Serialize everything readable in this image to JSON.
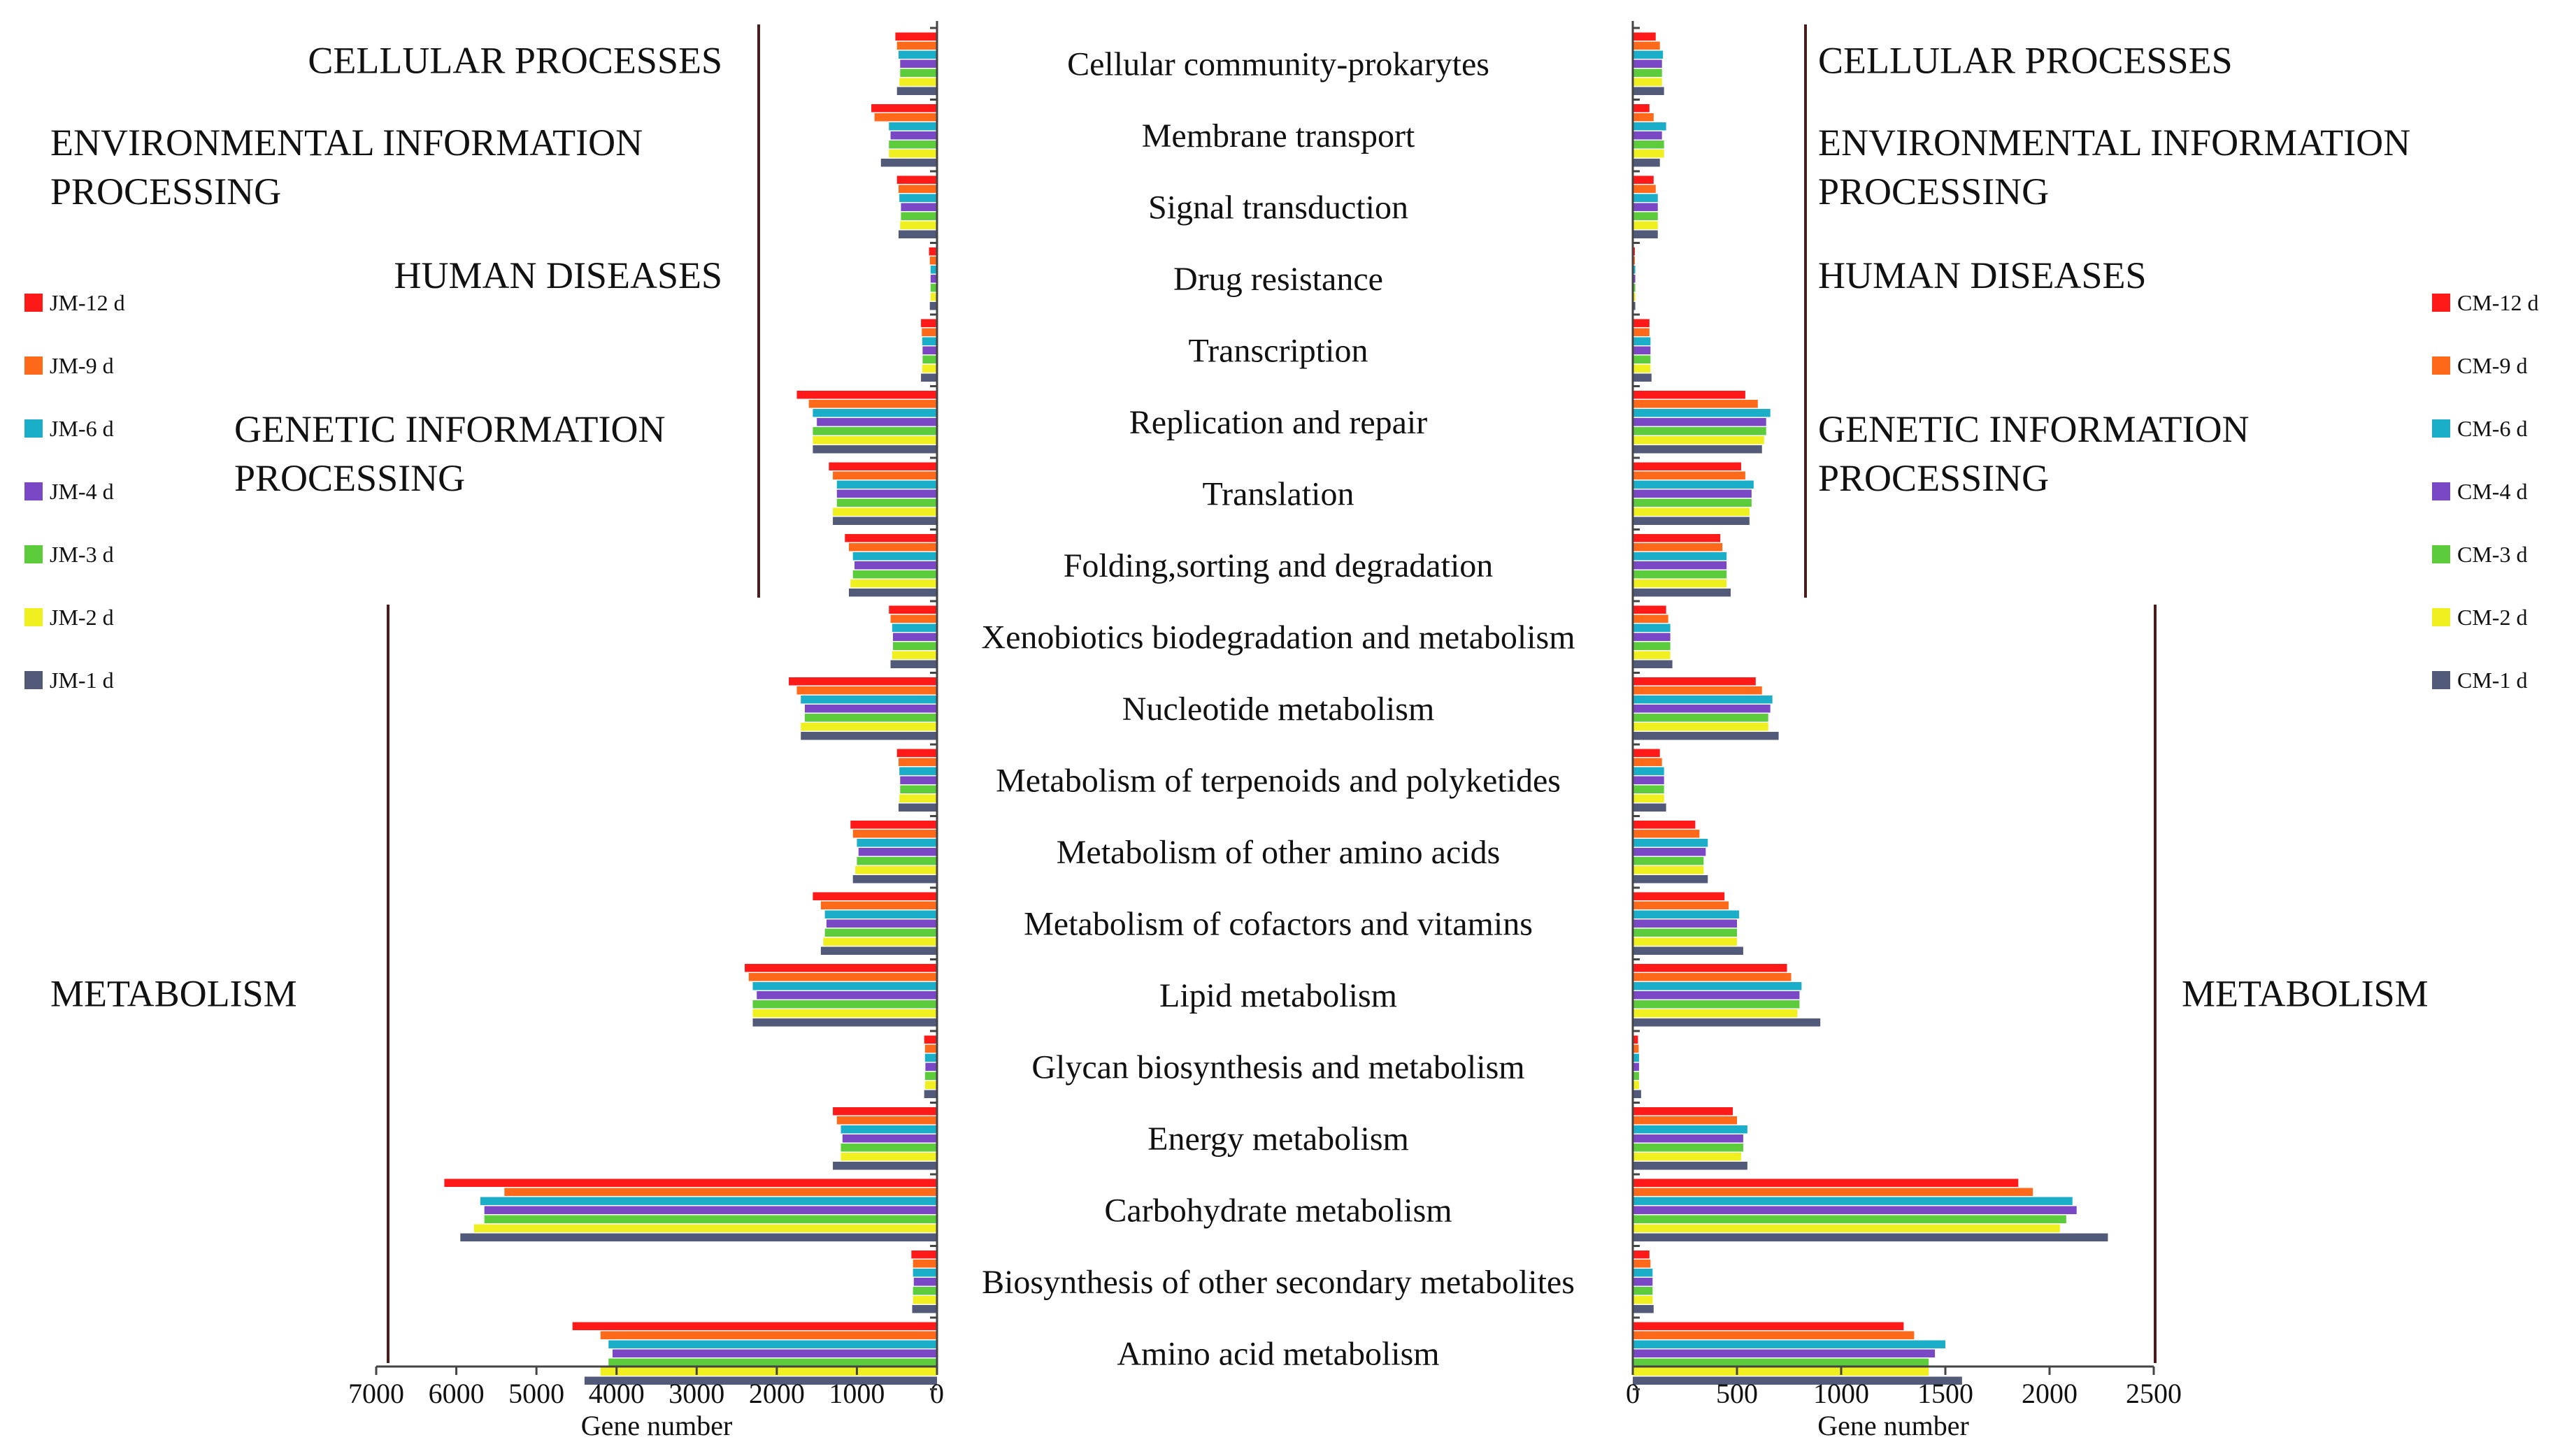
{
  "chart_data": {
    "type": "bar",
    "orientation": "horizontal",
    "categories": [
      "Cellular community-prokarytes",
      "Membrane transport",
      "Signal transduction",
      "Drug resistance",
      "Transcription",
      "Replication and repair",
      "Translation",
      "Folding,sorting and degradation",
      "Xenobiotics biodegradation and metabolism",
      "Nucleotide metabolism",
      "Metabolism of terpenoids and polyketides",
      "Metabolism of other amino acids",
      "Metabolism of cofactors and vitamins",
      "Lipid metabolism",
      "Glycan biosynthesis and metabolism",
      "Energy metabolism",
      "Carbohydrate metabolism",
      "Biosynthesis of other secondary metabolites",
      "Amino acid metabolism"
    ],
    "colors": [
      "#ff1a1a",
      "#ff6a1a",
      "#1aaec8",
      "#7a48c4",
      "#5ccc3c",
      "#f0f020",
      "#525a7a"
    ],
    "left": {
      "xlabel": "Gene number",
      "xlim": [
        0,
        7000
      ],
      "ticks": [
        7000,
        6000,
        5000,
        4000,
        3000,
        2000,
        1000,
        0
      ],
      "groups": [
        {
          "label": "CELLULAR PROCESSES",
          "start": 0,
          "end": 0
        },
        {
          "label": "ENVIRONMENTAL INFORMATION PROCESSING",
          "start": 1,
          "end": 2
        },
        {
          "label": "HUMAN DISEASES",
          "start": 3,
          "end": 3
        },
        {
          "label": "GENETIC INFORMATION PROCESSING",
          "start": 4,
          "end": 7
        },
        {
          "label": "METABOLISM",
          "start": 8,
          "end": 18
        }
      ],
      "series": [
        {
          "name": "JM-12 d",
          "values": [
            520,
            820,
            500,
            100,
            200,
            1750,
            1350,
            1150,
            600,
            1850,
            500,
            1080,
            1550,
            2400,
            160,
            1300,
            6150,
            320,
            4550
          ]
        },
        {
          "name": "JM-9 d",
          "values": [
            500,
            780,
            480,
            90,
            190,
            1600,
            1300,
            1100,
            580,
            1750,
            480,
            1050,
            1450,
            2350,
            150,
            1250,
            5400,
            300,
            4200
          ]
        },
        {
          "name": "JM-6 d",
          "values": [
            480,
            600,
            470,
            80,
            185,
            1550,
            1250,
            1050,
            560,
            1700,
            470,
            1000,
            1400,
            2300,
            150,
            1200,
            5700,
            300,
            4100
          ]
        },
        {
          "name": "JM-4 d",
          "values": [
            460,
            580,
            450,
            80,
            180,
            1500,
            1250,
            1030,
            550,
            1650,
            460,
            980,
            1380,
            2250,
            145,
            1180,
            5650,
            290,
            4050
          ]
        },
        {
          "name": "JM-3 d",
          "values": [
            460,
            600,
            450,
            80,
            180,
            1550,
            1250,
            1050,
            550,
            1650,
            460,
            1000,
            1400,
            2300,
            150,
            1200,
            5650,
            300,
            4100
          ]
        },
        {
          "name": "JM-2 d",
          "values": [
            470,
            600,
            460,
            80,
            185,
            1550,
            1300,
            1080,
            560,
            1700,
            470,
            1020,
            1420,
            2300,
            150,
            1200,
            5780,
            300,
            4200
          ]
        },
        {
          "name": "JM-1 d",
          "values": [
            500,
            700,
            480,
            90,
            200,
            1550,
            1300,
            1100,
            580,
            1700,
            480,
            1050,
            1450,
            2300,
            160,
            1300,
            5950,
            310,
            4400
          ]
        }
      ]
    },
    "right": {
      "xlabel": "Gene number",
      "xlim": [
        0,
        2500
      ],
      "ticks": [
        0,
        500,
        1000,
        1500,
        2000,
        2500
      ],
      "groups": [
        {
          "label": "CELLULAR PROCESSES",
          "start": 0,
          "end": 0
        },
        {
          "label": "ENVIRONMENTAL INFORMATION PROCESSING",
          "start": 1,
          "end": 2
        },
        {
          "label": "HUMAN DISEASES",
          "start": 3,
          "end": 3
        },
        {
          "label": "GENETIC INFORMATION PROCESSING",
          "start": 4,
          "end": 7
        },
        {
          "label": "METABOLISM",
          "start": 8,
          "end": 18
        }
      ],
      "series": [
        {
          "name": "CM-12 d",
          "values": [
            110,
            80,
            100,
            10,
            80,
            540,
            520,
            420,
            160,
            590,
            130,
            300,
            440,
            740,
            25,
            480,
            1850,
            80,
            1300
          ]
        },
        {
          "name": "CM-9 d",
          "values": [
            130,
            100,
            110,
            10,
            80,
            600,
            540,
            430,
            170,
            620,
            140,
            320,
            460,
            760,
            28,
            500,
            1920,
            85,
            1350
          ]
        },
        {
          "name": "CM-6 d",
          "values": [
            145,
            160,
            120,
            12,
            85,
            660,
            580,
            450,
            180,
            670,
            150,
            360,
            510,
            810,
            30,
            550,
            2110,
            95,
            1500
          ]
        },
        {
          "name": "CM-4 d",
          "values": [
            140,
            140,
            120,
            12,
            85,
            640,
            570,
            450,
            180,
            660,
            150,
            350,
            500,
            800,
            30,
            530,
            2130,
            95,
            1450
          ]
        },
        {
          "name": "CM-3 d",
          "values": [
            140,
            150,
            120,
            12,
            85,
            640,
            570,
            450,
            180,
            650,
            150,
            340,
            500,
            800,
            30,
            530,
            2080,
            95,
            1420
          ]
        },
        {
          "name": "CM-2 d",
          "values": [
            140,
            150,
            120,
            12,
            85,
            630,
            560,
            450,
            180,
            650,
            150,
            340,
            500,
            790,
            30,
            520,
            2050,
            95,
            1420
          ]
        },
        {
          "name": "CM-1 d",
          "values": [
            150,
            130,
            120,
            12,
            90,
            620,
            560,
            470,
            190,
            700,
            160,
            360,
            530,
            900,
            40,
            550,
            2280,
            100,
            1580
          ]
        }
      ]
    }
  }
}
